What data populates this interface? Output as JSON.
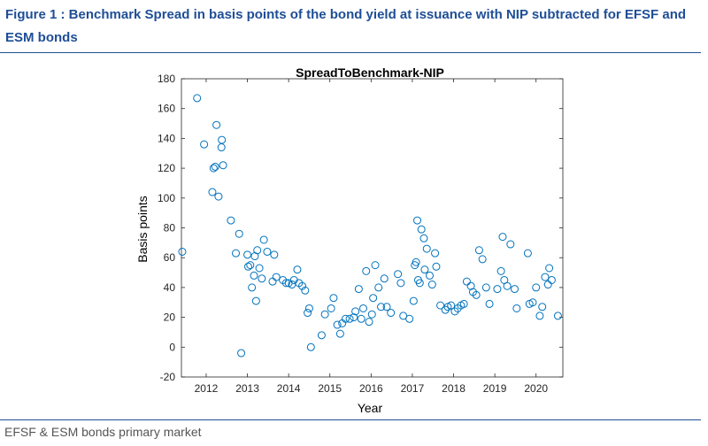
{
  "figure": {
    "caption": "Figure 1 : Benchmark Spread in basis points of the bond yield at issuance with NIP subtracted for EFSF and ESM bonds",
    "source": "EFSF & ESM bonds primary market"
  },
  "chart_data": {
    "type": "scatter",
    "title": "SpreadToBenchmark-NIP",
    "xlabel": "Year",
    "ylabel": "Basis points",
    "xlim": [
      2011.4,
      2020.65
    ],
    "ylim": [
      -20,
      180
    ],
    "xticks": [
      2012,
      2013,
      2014,
      2015,
      2016,
      2017,
      2018,
      2019,
      2020
    ],
    "yticks": [
      -20,
      0,
      20,
      40,
      60,
      80,
      100,
      120,
      140,
      160,
      180
    ],
    "grid": false,
    "marker": "open-circle",
    "marker_color": "#0072bd",
    "series": [
      {
        "x": [
          2011.42,
          2011.78,
          2011.95,
          2012.15,
          2012.18,
          2012.22,
          2012.25,
          2012.3,
          2012.37,
          2012.38,
          2012.41,
          2012.6,
          2012.72,
          2012.8,
          2012.85,
          2013.0,
          2013.02,
          2013.07,
          2013.11,
          2013.16,
          2013.18,
          2013.21,
          2013.24,
          2013.29,
          2013.35,
          2013.4,
          2013.48,
          2013.61,
          2013.65,
          2013.7,
          2013.86,
          2013.94,
          2014.0,
          2014.08,
          2014.13,
          2014.21,
          2014.25,
          2014.33,
          2014.4,
          2014.46,
          2014.5,
          2014.54,
          2014.8,
          2014.88,
          2015.03,
          2015.09,
          2015.18,
          2015.25,
          2015.3,
          2015.38,
          2015.48,
          2015.58,
          2015.62,
          2015.7,
          2015.76,
          2015.81,
          2015.88,
          2015.95,
          2016.02,
          2016.05,
          2016.1,
          2016.18,
          2016.24,
          2016.32,
          2016.38,
          2016.48,
          2016.65,
          2016.72,
          2016.78,
          2016.93,
          2017.03,
          2017.06,
          2017.09,
          2017.12,
          2017.14,
          2017.18,
          2017.22,
          2017.28,
          2017.3,
          2017.35,
          2017.42,
          2017.48,
          2017.55,
          2017.58,
          2017.68,
          2017.8,
          2017.86,
          2017.94,
          2018.03,
          2018.1,
          2018.18,
          2018.25,
          2018.32,
          2018.42,
          2018.47,
          2018.55,
          2018.62,
          2018.7,
          2018.79,
          2018.87,
          2019.06,
          2019.15,
          2019.19,
          2019.23,
          2019.3,
          2019.38,
          2019.48,
          2019.53,
          2019.8,
          2019.84,
          2019.92,
          2020.0,
          2020.09,
          2020.15,
          2020.22,
          2020.29,
          2020.32,
          2020.38,
          2020.53
        ],
        "y": [
          64,
          167,
          136,
          104,
          120,
          121,
          149,
          101,
          134,
          139,
          122,
          85,
          63,
          76,
          -4,
          62,
          54,
          55,
          40,
          48,
          61,
          31,
          65,
          53,
          46,
          72,
          64,
          44,
          62,
          47,
          45,
          43,
          43,
          42,
          45,
          52,
          43,
          41,
          38,
          23,
          26,
          0,
          8,
          22,
          26,
          33,
          15,
          9,
          16,
          19,
          19,
          20,
          24,
          39,
          19,
          26,
          51,
          17,
          22,
          33,
          55,
          40,
          27,
          46,
          27,
          23,
          49,
          43,
          21,
          19,
          31,
          55,
          57,
          85,
          45,
          43,
          79,
          73,
          52,
          66,
          48,
          42,
          63,
          54,
          28,
          25,
          27,
          28,
          24,
          26,
          28,
          29,
          44,
          41,
          37,
          35,
          65,
          59,
          40,
          29,
          39,
          51,
          74,
          45,
          41,
          69,
          39,
          26,
          63,
          29,
          30,
          40,
          21,
          27,
          47,
          42,
          53,
          45,
          21
        ]
      }
    ]
  }
}
